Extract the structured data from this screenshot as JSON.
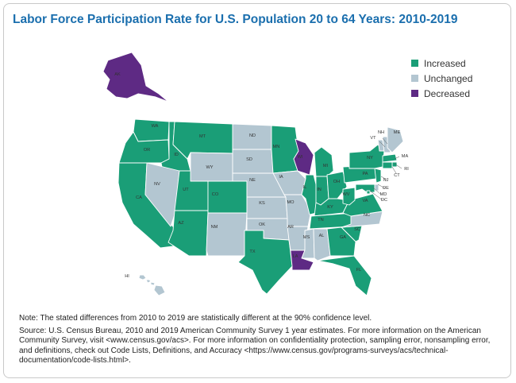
{
  "title": "Labor Force Participation Rate for U.S. Population 20 to 64 Years: 2010-2019",
  "legend": [
    {
      "key": "increased",
      "label": "Increased",
      "color": "#1a9e77"
    },
    {
      "key": "unchanged",
      "label": "Unchanged",
      "color": "#b3c6d1"
    },
    {
      "key": "decreased",
      "label": "Decreased",
      "color": "#5e2a84"
    }
  ],
  "states": [
    {
      "abbr": "AK",
      "status": "decreased"
    },
    {
      "abbr": "HI",
      "status": "unchanged"
    },
    {
      "abbr": "WA",
      "status": "increased"
    },
    {
      "abbr": "OR",
      "status": "increased"
    },
    {
      "abbr": "CA",
      "status": "increased"
    },
    {
      "abbr": "ID",
      "status": "increased"
    },
    {
      "abbr": "NV",
      "status": "unchanged"
    },
    {
      "abbr": "MT",
      "status": "increased"
    },
    {
      "abbr": "WY",
      "status": "unchanged"
    },
    {
      "abbr": "UT",
      "status": "increased"
    },
    {
      "abbr": "AZ",
      "status": "increased"
    },
    {
      "abbr": "CO",
      "status": "increased"
    },
    {
      "abbr": "NM",
      "status": "unchanged"
    },
    {
      "abbr": "ND",
      "status": "unchanged"
    },
    {
      "abbr": "SD",
      "status": "unchanged"
    },
    {
      "abbr": "NE",
      "status": "unchanged"
    },
    {
      "abbr": "KS",
      "status": "unchanged"
    },
    {
      "abbr": "OK",
      "status": "unchanged"
    },
    {
      "abbr": "TX",
      "status": "increased"
    },
    {
      "abbr": "MN",
      "status": "increased"
    },
    {
      "abbr": "IA",
      "status": "unchanged"
    },
    {
      "abbr": "MO",
      "status": "unchanged"
    },
    {
      "abbr": "AR",
      "status": "unchanged"
    },
    {
      "abbr": "LA",
      "status": "decreased"
    },
    {
      "abbr": "WI",
      "status": "decreased"
    },
    {
      "abbr": "IL",
      "status": "increased"
    },
    {
      "abbr": "MI",
      "status": "increased"
    },
    {
      "abbr": "IN",
      "status": "increased"
    },
    {
      "abbr": "OH",
      "status": "increased"
    },
    {
      "abbr": "KY",
      "status": "increased"
    },
    {
      "abbr": "TN",
      "status": "increased"
    },
    {
      "abbr": "MS",
      "status": "unchanged"
    },
    {
      "abbr": "AL",
      "status": "unchanged"
    },
    {
      "abbr": "GA",
      "status": "increased"
    },
    {
      "abbr": "FL",
      "status": "increased"
    },
    {
      "abbr": "SC",
      "status": "increased"
    },
    {
      "abbr": "NC",
      "status": "unchanged"
    },
    {
      "abbr": "VA",
      "status": "increased"
    },
    {
      "abbr": "WV",
      "status": "increased"
    },
    {
      "abbr": "PA",
      "status": "increased"
    },
    {
      "abbr": "NY",
      "status": "increased"
    },
    {
      "abbr": "VT",
      "status": "unchanged"
    },
    {
      "abbr": "NH",
      "status": "unchanged"
    },
    {
      "abbr": "ME",
      "status": "unchanged"
    },
    {
      "abbr": "MA",
      "status": "increased"
    },
    {
      "abbr": "RI",
      "status": "increased"
    },
    {
      "abbr": "CT",
      "status": "increased"
    },
    {
      "abbr": "NJ",
      "status": "increased"
    },
    {
      "abbr": "DE",
      "status": "unchanged"
    },
    {
      "abbr": "MD",
      "status": "increased"
    },
    {
      "abbr": "DC",
      "status": "increased"
    }
  ],
  "note": "Note: The stated differences from 2010 to 2019 are statistically different at the 90% confidence level.",
  "source": "Source: U.S. Census Bureau, 2010 and 2019 American Community Survey 1 year estimates. For more information on the American Community Survey, visit <www.census.gov/acs>. For more information on confidentiality protection, sampling error, nonsampling error, and definitions, check out Code Lists, Definitions, and Accuracy <https://www.census.gov/programs-surveys/acs/technical-documentation/code-lists.html>."
}
